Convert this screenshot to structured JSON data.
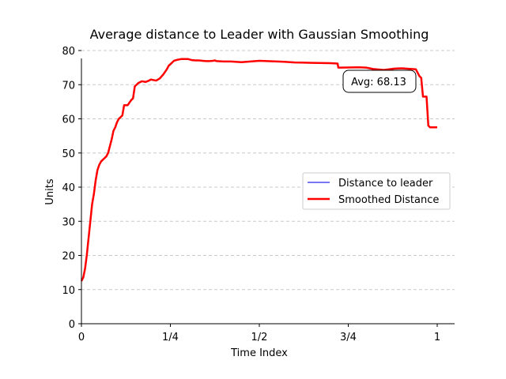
{
  "chart_data": {
    "type": "line",
    "title": "Average distance to Leader with Gaussian Smoothing",
    "xlabel": "Time Index",
    "ylabel": "Units",
    "xlim": [
      0,
      1.05
    ],
    "ylim": [
      0,
      80
    ],
    "xticks": [
      {
        "value": 0,
        "label": "0"
      },
      {
        "value": 0.25,
        "label": "1/4"
      },
      {
        "value": 0.5,
        "label": "1/2"
      },
      {
        "value": 0.75,
        "label": "3/4"
      },
      {
        "value": 1,
        "label": "1"
      }
    ],
    "yticks": [
      {
        "value": 0,
        "label": "0"
      },
      {
        "value": 10,
        "label": "10"
      },
      {
        "value": 20,
        "label": "20"
      },
      {
        "value": 30,
        "label": "30"
      },
      {
        "value": 40,
        "label": "40"
      },
      {
        "value": 50,
        "label": "50"
      },
      {
        "value": 60,
        "label": "60"
      },
      {
        "value": 70,
        "label": "70"
      },
      {
        "value": 80,
        "label": "80"
      }
    ],
    "grid": "horizontal dashed",
    "legend_position": "center-right",
    "annotation": "Avg: 68.13",
    "series": [
      {
        "name": "Distance to leader",
        "color": "#4b4bf0",
        "x": [
          0,
          0.005,
          0.01,
          0.015,
          0.02,
          0.025,
          0.03,
          0.035,
          0.04,
          0.045,
          0.05,
          0.055,
          0.06,
          0.065,
          0.07,
          0.075,
          0.08,
          0.085,
          0.09,
          0.095,
          0.1,
          0.105,
          0.11,
          0.115,
          0.12,
          0.125,
          0.13,
          0.14,
          0.145,
          0.15,
          0.16,
          0.17,
          0.18,
          0.19,
          0.195,
          0.2,
          0.21,
          0.22,
          0.23,
          0.24,
          0.245,
          0.25,
          0.26,
          0.27,
          0.28,
          0.3,
          0.31,
          0.32,
          0.33,
          0.34,
          0.35,
          0.36,
          0.37,
          0.375,
          0.38,
          0.4,
          0.42,
          0.45,
          0.5,
          0.55,
          0.57,
          0.6,
          0.65,
          0.7,
          0.72,
          0.722,
          0.73,
          0.78,
          0.8,
          0.82,
          0.85,
          0.88,
          0.9,
          0.94,
          0.95,
          0.955,
          0.96,
          0.97,
          0.975,
          0.98,
          1.0
        ],
        "y": [
          12.5,
          13.5,
          16,
          20,
          25,
          30,
          35,
          38,
          42,
          45,
          46.5,
          47.5,
          48,
          48.5,
          49,
          50,
          52,
          54,
          56.5,
          57.5,
          59,
          60,
          60.5,
          61,
          64,
          64,
          64,
          65.5,
          66,
          69.5,
          70.5,
          71,
          70.8,
          71.2,
          71.5,
          71.4,
          71.2,
          71.8,
          73,
          74.5,
          75.5,
          76,
          77,
          77.3,
          77.5,
          77.5,
          77.2,
          77.1,
          77.1,
          77.0,
          76.9,
          76.9,
          77.0,
          77.1,
          76.9,
          76.8,
          76.8,
          76.6,
          77.0,
          76.8,
          76.7,
          76.5,
          76.4,
          76.3,
          76.2,
          75,
          75,
          75.1,
          75.0,
          74.6,
          74.3,
          74.7,
          74.8,
          74.5,
          72.5,
          72,
          66.5,
          66.5,
          58,
          57.5,
          57.5
        ]
      },
      {
        "name": "Smoothed Distance",
        "color": "#ff0000",
        "x": [
          0,
          0.005,
          0.01,
          0.015,
          0.02,
          0.025,
          0.03,
          0.035,
          0.04,
          0.045,
          0.05,
          0.055,
          0.06,
          0.065,
          0.07,
          0.075,
          0.08,
          0.085,
          0.09,
          0.095,
          0.1,
          0.105,
          0.11,
          0.115,
          0.12,
          0.125,
          0.13,
          0.14,
          0.145,
          0.15,
          0.16,
          0.17,
          0.18,
          0.19,
          0.195,
          0.2,
          0.21,
          0.22,
          0.23,
          0.24,
          0.245,
          0.25,
          0.26,
          0.27,
          0.28,
          0.3,
          0.31,
          0.32,
          0.33,
          0.34,
          0.35,
          0.36,
          0.37,
          0.375,
          0.38,
          0.4,
          0.42,
          0.45,
          0.5,
          0.55,
          0.57,
          0.6,
          0.65,
          0.7,
          0.72,
          0.722,
          0.73,
          0.78,
          0.8,
          0.82,
          0.85,
          0.88,
          0.9,
          0.94,
          0.95,
          0.955,
          0.96,
          0.97,
          0.975,
          0.98,
          1.0
        ],
        "y": [
          12.5,
          13.5,
          16,
          20,
          25,
          30,
          35,
          38,
          42,
          45,
          46.5,
          47.5,
          48,
          48.5,
          49,
          50,
          52,
          54,
          56.5,
          57.5,
          59,
          60,
          60.5,
          61,
          64,
          64,
          64,
          65.5,
          66,
          69.5,
          70.5,
          71,
          70.8,
          71.2,
          71.5,
          71.4,
          71.2,
          71.8,
          73,
          74.5,
          75.5,
          76,
          77,
          77.3,
          77.5,
          77.5,
          77.2,
          77.1,
          77.1,
          77.0,
          76.9,
          76.9,
          77.0,
          77.1,
          76.9,
          76.8,
          76.8,
          76.6,
          77.0,
          76.8,
          76.7,
          76.5,
          76.4,
          76.3,
          76.2,
          75,
          75,
          75.1,
          75.0,
          74.6,
          74.3,
          74.7,
          74.8,
          74.5,
          72.5,
          72,
          66.5,
          66.5,
          58,
          57.5,
          57.5
        ]
      }
    ]
  }
}
